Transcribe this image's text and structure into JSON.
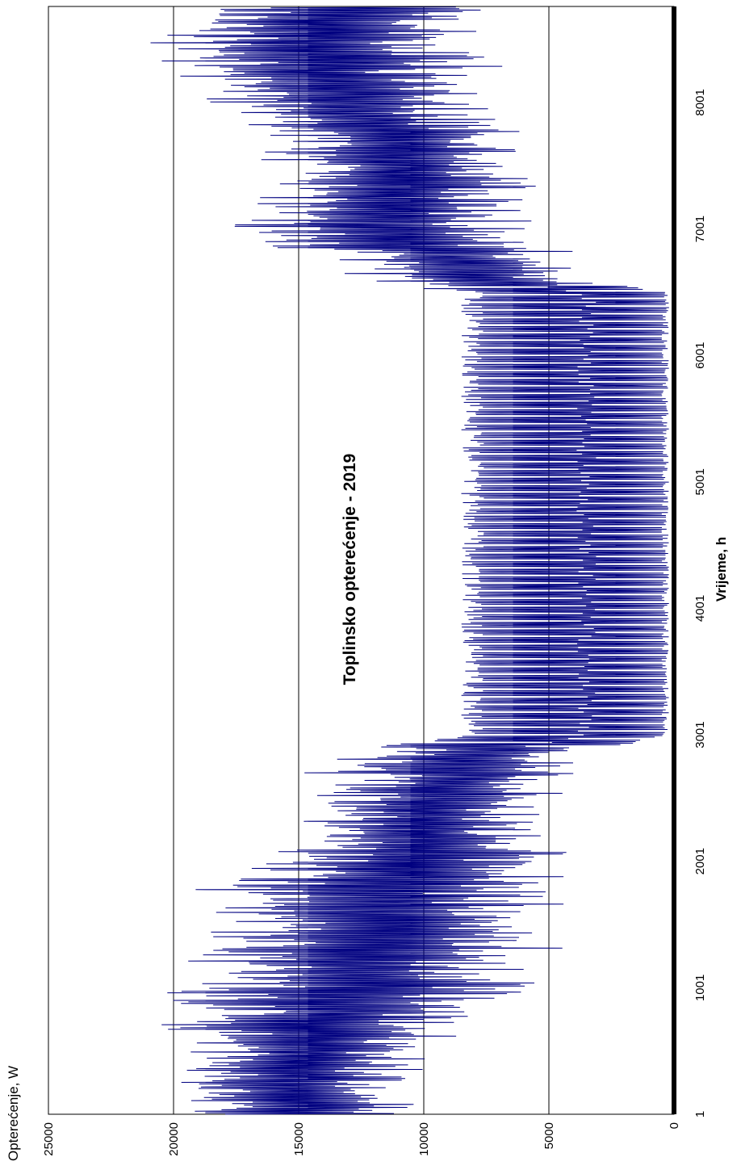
{
  "chart_data": {
    "type": "line",
    "title": "Toplinsko opterećenje - 2019",
    "xlabel": "Vrijeme, h",
    "ylabel": "Opterećenje, W",
    "xlim": [
      1,
      8760
    ],
    "ylim": [
      0,
      25000
    ],
    "x_ticks": [
      "1",
      "1001",
      "2001",
      "3001",
      "4001",
      "5001",
      "6001",
      "7001",
      "8001"
    ],
    "y_ticks": [
      "0",
      "5000",
      "10000",
      "15000",
      "20000",
      "25000"
    ],
    "grid": "major y gridlines",
    "orientation": "rotated 90 degrees clockwise",
    "line_color": "#000080",
    "series": [
      {
        "x": [
          1,
          250,
          500,
          750,
          1000,
          1250,
          1500,
          1750,
          2000,
          2250,
          2500,
          2750,
          2850,
          3000,
          3500,
          4000,
          4500,
          5000,
          5500,
          6000,
          6500,
          6600,
          6800,
          7000,
          7250,
          7500,
          7750,
          8000,
          8250,
          8500,
          8760
        ],
        "upper": [
          20500,
          21000,
          21000,
          22000,
          21000,
          20500,
          20000,
          19500,
          17500,
          16500,
          15000,
          15000,
          14500,
          8500,
          8500,
          8500,
          8500,
          8500,
          8500,
          8500,
          8500,
          14000,
          16000,
          18500,
          18000,
          17000,
          17000,
          19000,
          22000,
          21000,
          20500
        ],
        "lower": [
          10000,
          9500,
          9000,
          7500,
          3500,
          4000,
          3500,
          4000,
          3500,
          3500,
          3500,
          3500,
          3500,
          200,
          200,
          200,
          200,
          200,
          200,
          200,
          200,
          3500,
          3500,
          5000,
          4500,
          5000,
          5000,
          7000,
          6500,
          6500,
          6000
        ],
        "center": [
          15000,
          15200,
          14500,
          13500,
          12500,
          12500,
          12000,
          12000,
          10000,
          10000,
          9500,
          8500,
          8000,
          3500,
          3500,
          3500,
          3500,
          3500,
          3500,
          3500,
          3500,
          7500,
          9000,
          11500,
          11500,
          11000,
          11500,
          13000,
          14000,
          14000,
          13000
        ]
      }
    ]
  }
}
